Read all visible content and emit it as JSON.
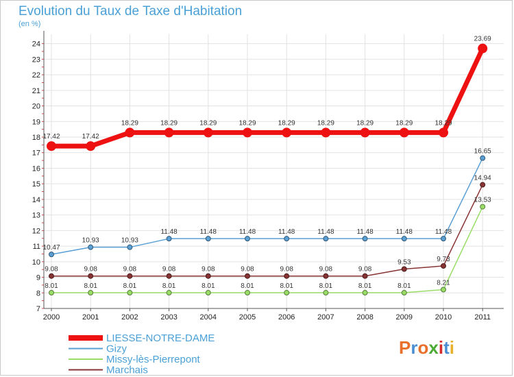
{
  "page": {
    "title": "Evolution du Taux de Taxe d'Habitation",
    "unit": "(en %)",
    "brand": "Proxiti"
  },
  "chart_data": {
    "type": "line",
    "title": "Evolution du Taux de Taxe d'Habitation",
    "ylabel": "(en %)",
    "xlabel": "",
    "x": [
      "2000",
      "2001",
      "2002",
      "2003",
      "2004",
      "2005",
      "2006",
      "2007",
      "2008",
      "2009",
      "2010",
      "2011"
    ],
    "ylim": [
      7,
      24.6
    ],
    "yticks": [
      7,
      8,
      9,
      10,
      11,
      12,
      13,
      14,
      15,
      16,
      17,
      18,
      19,
      20,
      21,
      22,
      23,
      24
    ],
    "grid": true,
    "legend_position": "bottom-left",
    "series": [
      {
        "name": "LIESSE-NOTRE-DAME",
        "color": "#ee1111",
        "strong": true,
        "values": [
          17.42,
          17.42,
          18.29,
          18.29,
          18.29,
          18.29,
          18.29,
          18.29,
          18.29,
          18.29,
          18.29,
          23.69
        ],
        "labels": [
          "17.42",
          "17.42",
          "18.29",
          "18.29",
          "18.29",
          "18.29",
          "18.29",
          "18.29",
          "18.29",
          "18.29",
          "18.29",
          "23.69"
        ]
      },
      {
        "name": "Gizy",
        "color": "#5a9fd4",
        "strong": false,
        "values": [
          10.47,
          10.93,
          10.93,
          11.48,
          11.48,
          11.48,
          11.48,
          11.48,
          11.48,
          11.48,
          11.48,
          16.65
        ],
        "labels": [
          "10.47",
          "10.93",
          "10.93",
          "11.48",
          "11.48",
          "11.48",
          "11.48",
          "11.48",
          "11.48",
          "11.48",
          "11.48",
          "16.65"
        ]
      },
      {
        "name": "Missy-lès-Pierrepont",
        "color": "#99dd66",
        "strong": false,
        "values": [
          8.01,
          8.01,
          8.01,
          8.01,
          8.01,
          8.01,
          8.01,
          8.01,
          8.01,
          8.01,
          8.21,
          13.53
        ],
        "labels": [
          "8.01",
          "8.01",
          "8.01",
          "8.01",
          "8.01",
          "8.01",
          "8.01",
          "8.01",
          "8.01",
          "8.01",
          "8.21",
          "13.53"
        ]
      },
      {
        "name": "Marchais",
        "color": "#883333",
        "strong": false,
        "values": [
          9.08,
          9.08,
          9.08,
          9.08,
          9.08,
          9.08,
          9.08,
          9.08,
          9.08,
          9.53,
          9.73,
          14.94
        ],
        "labels": [
          "9.08",
          "9.08",
          "9.08",
          "9.08",
          "9.08",
          "9.08",
          "9.08",
          "9.08",
          "9.08",
          "9.53",
          "9.73",
          "14.94"
        ]
      }
    ]
  }
}
